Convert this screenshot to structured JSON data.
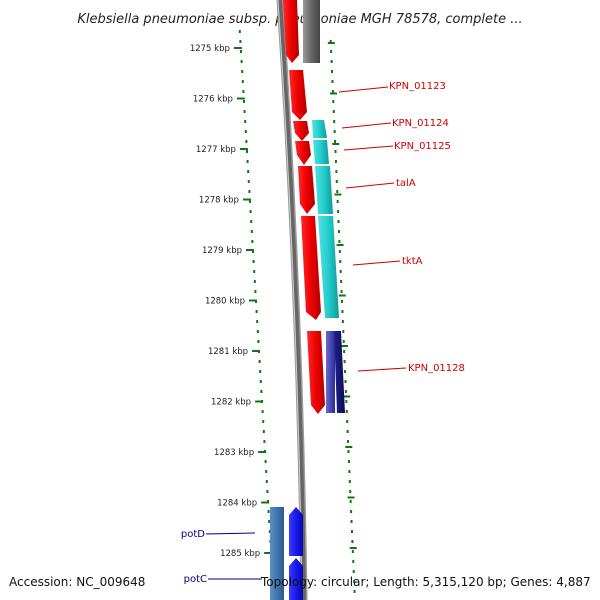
{
  "title": "Klebsiella pneumoniae subsp. pneumoniae MGH 78578, complete ...",
  "ruler_ticks": [
    "1275 kbp",
    "1276 kbp",
    "1277 kbp",
    "1278 kbp",
    "1279 kbp",
    "1280 kbp",
    "1281 kbp",
    "1282 kbp",
    "1283 kbp",
    "1284 kbp",
    "1285 kbp"
  ],
  "gene_labels": [
    {
      "name": "KPN_01123",
      "color": "#cc0000"
    },
    {
      "name": "KPN_01124",
      "color": "#cc0000"
    },
    {
      "name": "KPN_01125",
      "color": "#cc0000"
    },
    {
      "name": "talA",
      "color": "#cc0000"
    },
    {
      "name": "tktA",
      "color": "#cc0000"
    },
    {
      "name": "KPN_01128",
      "color": "#cc0000"
    },
    {
      "name": "potD",
      "color": "#000080"
    },
    {
      "name": "potC",
      "color": "#000080"
    }
  ],
  "footer": {
    "accession": "Accession: NC_009648",
    "topology": "Topology: circular; Length: 5,315,120 bp; Genes: 4,887"
  },
  "colors": {
    "forward_gene": "#ee0000",
    "reverse_gene": "#22cccc",
    "dark_gene": "#1a1a8c",
    "blue_gene": "#1a1aee",
    "steel_gene": "#3a70a8",
    "backbone": "#777777",
    "ruler": "#117711"
  }
}
